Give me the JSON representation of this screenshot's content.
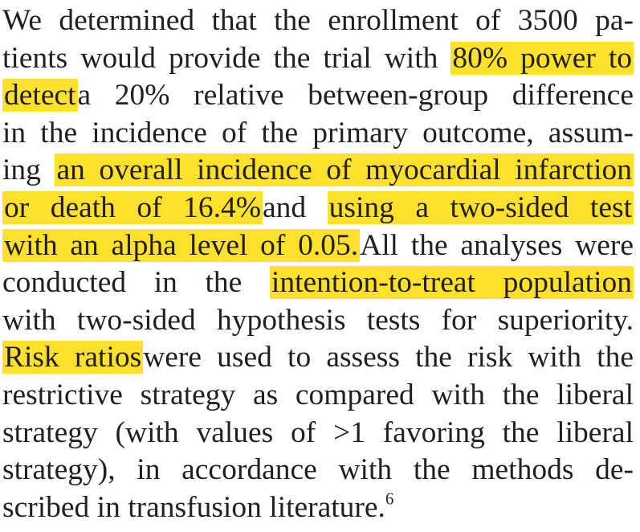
{
  "paragraph": {
    "lines": [
      [
        "We determined that the enrollment of 3500 pa-"
      ],
      [
        "tients would provide the trial with",
        {
          "h": "80% power to"
        }
      ],
      [
        {
          "h": "detect"
        },
        "a 20% relative between-group difference"
      ],
      [
        "in the incidence of the primary outcome, assum-"
      ],
      [
        "ing",
        {
          "h": "an overall incidence of myocardial infarction"
        }
      ],
      [
        {
          "h": "or death of 16.4%"
        },
        "and",
        {
          "h": "using a two-sided test"
        }
      ],
      [
        {
          "h": "with an alpha level of 0.05."
        },
        "All the analyses were"
      ],
      [
        "conducted in the",
        {
          "h": "intention-to-treat population"
        }
      ],
      [
        "with two-sided hypothesis tests for superiority."
      ],
      [
        {
          "h": "Risk ratios"
        },
        "were used to assess the risk with the"
      ],
      [
        "restrictive strategy as compared with the liberal"
      ],
      [
        "strategy (with values of >1 favoring the liberal"
      ],
      [
        "strategy), in accordance with the methods de-"
      ],
      [
        "scribed in transfusion literature.",
        {
          "sup": "6"
        }
      ]
    ]
  },
  "colors": {
    "highlight": "#fde12b",
    "text": "#231f20",
    "background": "#ffffff"
  }
}
